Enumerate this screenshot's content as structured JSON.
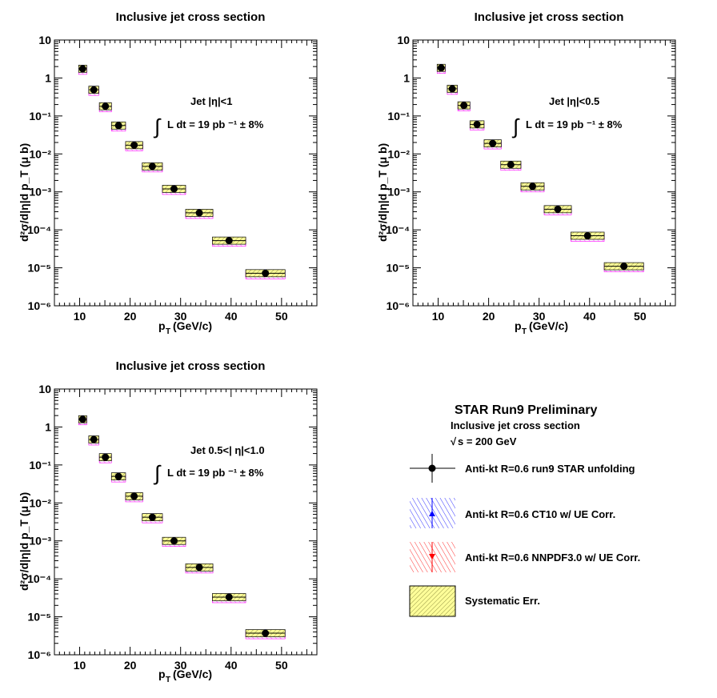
{
  "colors": {
    "data": "#000000",
    "ct10": "#0000ff",
    "nnpdf": "#ff0000",
    "sys_fill": "#ffff99",
    "sys_hatch": "#888833",
    "pred_band": "#ff00ff"
  },
  "chart_data": [
    {
      "type": "scatter",
      "title": "Inclusive jet cross section",
      "xlabel_main": "p",
      "xlabel_sub": "T",
      "xlabel_rest": "(GeV/c)",
      "ylabel": "d²σ/d|η|d p_T (μ b)",
      "yscale": "log",
      "xlim": [
        5,
        57
      ],
      "ylim": [
        1e-06,
        10
      ],
      "x_ticks": [
        10,
        20,
        30,
        40,
        50
      ],
      "x_tick_labels": [
        "10",
        "20",
        "30",
        "40",
        "50"
      ],
      "y_tick_labels": [
        "10",
        "1",
        "10⁻¹",
        "10⁻²",
        "10⁻³",
        "10⁻⁴",
        "10⁻⁵",
        "10⁻⁶"
      ],
      "annotation_title": "Jet |η|<1",
      "annotation_lumi": "L dt  = 19 pb ⁻¹  ± 8%",
      "x": [
        10.6,
        12.8,
        15.1,
        17.7,
        20.8,
        24.4,
        28.7,
        33.7,
        39.6,
        46.8
      ],
      "x_err": [
        0.8,
        1.0,
        1.2,
        1.4,
        1.7,
        2.0,
        2.3,
        2.7,
        3.3,
        3.9
      ],
      "values": [
        1.75,
        0.49,
        0.18,
        0.056,
        0.017,
        0.0047,
        0.0012,
        0.00028,
        5.2e-05,
        7.2e-06
      ]
    },
    {
      "type": "scatter",
      "title": "Inclusive jet cross section",
      "xlabel_main": "p",
      "xlabel_sub": "T",
      "xlabel_rest": "(GeV/c)",
      "ylabel": "d²σ/d|η|d p_T (μ b)",
      "yscale": "log",
      "xlim": [
        5,
        57
      ],
      "ylim": [
        1e-06,
        10
      ],
      "x_ticks": [
        10,
        20,
        30,
        40,
        50
      ],
      "x_tick_labels": [
        "10",
        "20",
        "30",
        "40",
        "50"
      ],
      "y_tick_labels": [
        "10",
        "1",
        "10⁻¹",
        "10⁻²",
        "10⁻³",
        "10⁻⁴",
        "10⁻⁵",
        "10⁻⁶"
      ],
      "annotation_title": "Jet |η|<0.5",
      "annotation_lumi": "L dt  = 19 pb ⁻¹  ± 8%",
      "x": [
        10.6,
        12.8,
        15.1,
        17.7,
        20.8,
        24.4,
        28.7,
        33.7,
        39.6,
        46.8
      ],
      "x_err": [
        0.8,
        1.0,
        1.2,
        1.4,
        1.7,
        2.0,
        2.3,
        2.7,
        3.3,
        3.9
      ],
      "values": [
        1.85,
        0.52,
        0.19,
        0.06,
        0.019,
        0.0052,
        0.0014,
        0.00035,
        7e-05,
        1.1e-05
      ]
    },
    {
      "type": "scatter",
      "title": "Inclusive jet cross section",
      "xlabel_main": "p",
      "xlabel_sub": "T",
      "xlabel_rest": "(GeV/c)",
      "ylabel": "d²σ/d|η|d p_T (μ b)",
      "yscale": "log",
      "xlim": [
        5,
        57
      ],
      "ylim": [
        1e-06,
        10
      ],
      "x_ticks": [
        10,
        20,
        30,
        40,
        50
      ],
      "x_tick_labels": [
        "10",
        "20",
        "30",
        "40",
        "50"
      ],
      "y_tick_labels": [
        "10",
        "1",
        "10⁻¹",
        "10⁻²",
        "10⁻³",
        "10⁻⁴",
        "10⁻⁵",
        "10⁻⁶"
      ],
      "annotation_title": "Jet 0.5<| η|<1.0",
      "annotation_lumi": "L dt  = 19 pb ⁻¹  ± 8%",
      "x": [
        10.6,
        12.8,
        15.1,
        17.7,
        20.8,
        24.4,
        28.7,
        33.7,
        39.6,
        46.8
      ],
      "x_err": [
        0.8,
        1.0,
        1.2,
        1.4,
        1.7,
        2.0,
        2.3,
        2.7,
        3.3,
        3.9
      ],
      "values": [
        1.6,
        0.47,
        0.16,
        0.05,
        0.015,
        0.0042,
        0.001,
        0.0002,
        3.3e-05,
        3.7e-06
      ]
    }
  ],
  "legend": {
    "title": "STAR Run9 Preliminary",
    "subtitle": "Inclusive jet cross section",
    "energy": "s = 200 GeV",
    "energy_root": "√",
    "entries": [
      {
        "label": "Anti-kt R=0.6 run9 STAR unfolding",
        "kind": "data"
      },
      {
        "label": "Anti-kt R=0.6 CT10 w/ UE Corr.",
        "kind": "ct10"
      },
      {
        "label": "Anti-kt R=0.6 NNPDF3.0 w/ UE Corr.",
        "kind": "nnpdf"
      },
      {
        "label": "Systematic Err.",
        "kind": "sys"
      }
    ]
  }
}
